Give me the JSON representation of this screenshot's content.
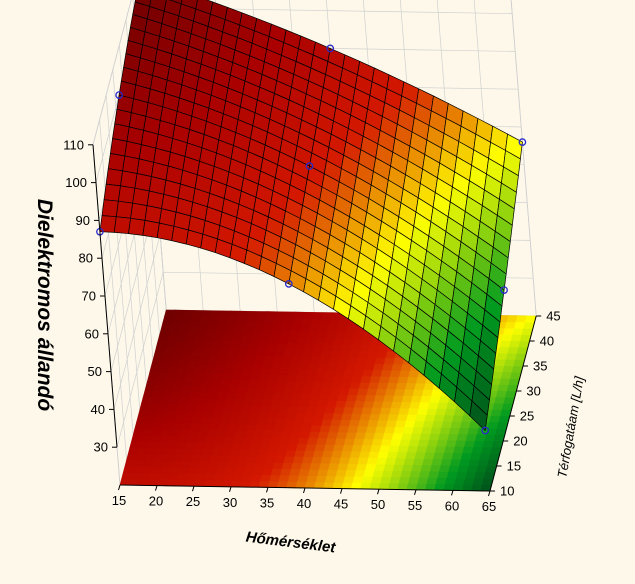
{
  "chart_data": {
    "type": "surface3d",
    "xlabel": "Hőmérséklet",
    "ylabel": "Térfogatáam [L/h]",
    "zlabel": "Dielektromos állandó",
    "x_ticks": [
      "15",
      "20",
      "25",
      "30",
      "35",
      "40",
      "45",
      "50",
      "55",
      "60",
      "65"
    ],
    "y_ticks": [
      "10",
      "15",
      "20",
      "25",
      "30",
      "35",
      "40",
      "45"
    ],
    "z_ticks": [
      "30",
      "40",
      "50",
      "60",
      "70",
      "80",
      "90",
      "100",
      "110"
    ],
    "xlim": [
      15,
      65
    ],
    "ylim": [
      10,
      45
    ],
    "zlim": [
      20,
      110
    ],
    "surface": {
      "x": [
        15,
        65
      ],
      "y": [
        10,
        45
      ],
      "z_corners": {
        "x15_y10": 87,
        "x15_y45": 108,
        "x65_y10": 36,
        "x65_y45": 66
      }
    },
    "points": [
      {
        "x": 15,
        "y": 10,
        "z": 87
      },
      {
        "x": 15,
        "y": 27.5,
        "z": 100
      },
      {
        "x": 15,
        "y": 45,
        "z": 108
      },
      {
        "x": 40,
        "y": 10,
        "z": 74
      },
      {
        "x": 40,
        "y": 27.5,
        "z": 82
      },
      {
        "x": 40,
        "y": 45,
        "z": 90
      },
      {
        "x": 65,
        "y": 10,
        "z": 36
      },
      {
        "x": 65,
        "y": 27.5,
        "z": 50
      },
      {
        "x": 65,
        "y": 45,
        "z": 66
      }
    ],
    "colors": {
      "background": "#fdf8ea",
      "high": "#6e0000",
      "mid_high": "#d41800",
      "mid": "#ffff00",
      "low": "#009a20",
      "lowest": "#004d1a",
      "grid_line": "#000000",
      "point": "#2a2acc"
    },
    "grid": true
  }
}
